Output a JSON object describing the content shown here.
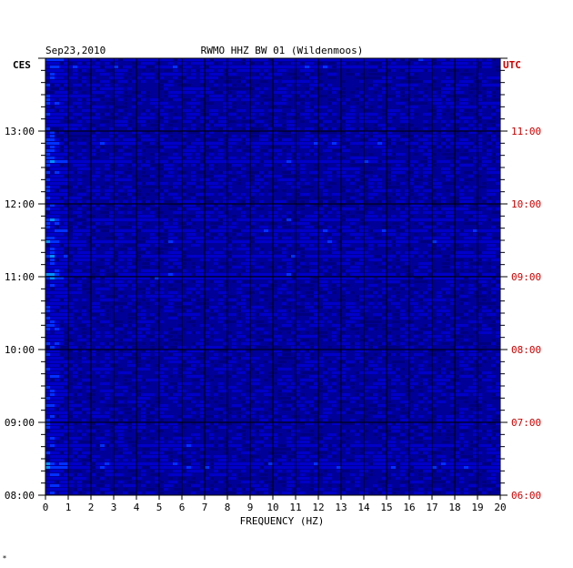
{
  "chart_data": {
    "type": "heatmap",
    "title": "RWMO HHZ BW 01 (Wildenmoos)",
    "date": "Sep23,2010",
    "left_timezone": "CES",
    "right_timezone": "UTC",
    "xlabel": "FREQUENCY (HZ)",
    "xlim": [
      0,
      20
    ],
    "x_ticks": [
      "0",
      "1",
      "2",
      "3",
      "4",
      "5",
      "6",
      "7",
      "8",
      "9",
      "10",
      "11",
      "12",
      "13",
      "14",
      "15",
      "16",
      "17",
      "18",
      "19",
      "20"
    ],
    "left_time_range": [
      "08:00",
      "14:00"
    ],
    "left_y_ticks": [
      "08:00",
      "09:00",
      "10:00",
      "11:00",
      "12:00",
      "13:00"
    ],
    "right_y_ticks": [
      "06:00",
      "07:00",
      "08:00",
      "09:00",
      "10:00",
      "11:00"
    ],
    "grid": true,
    "colormap": [
      "#000080",
      "#0000c8",
      "#0030ff",
      "#0090ff",
      "#00e0ff",
      "#60ff90",
      "#ffff00",
      "#ff8000",
      "#e00000"
    ],
    "background_color": "#000098",
    "utc_label_color": "#cc0000",
    "footer_mark": "*"
  }
}
